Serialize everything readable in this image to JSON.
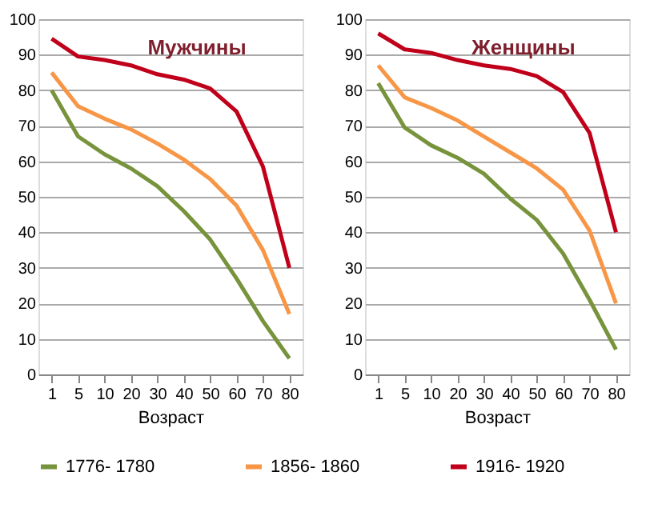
{
  "chart_data": [
    {
      "type": "line",
      "title": "Мужчины",
      "xlabel": "Возраст",
      "categories": [
        "1",
        "5",
        "10",
        "20",
        "30",
        "40",
        "50",
        "60",
        "70",
        "80"
      ],
      "ylim": [
        0,
        100
      ],
      "yticks": [
        0,
        10,
        20,
        30,
        40,
        50,
        60,
        70,
        80,
        90,
        100
      ],
      "grid": "y",
      "legend": "bottom",
      "series": [
        {
          "name": "1776- 1780",
          "color": "#77933c",
          "values": [
            80,
            67,
            62,
            58,
            53,
            46,
            38,
            27,
            15,
            4.5
          ]
        },
        {
          "name": "1856- 1860",
          "color": "#f79646",
          "values": [
            85,
            75.5,
            72,
            69,
            65,
            60.5,
            55,
            47.5,
            35,
            17
          ]
        },
        {
          "name": "1916- 1920",
          "color": "#c0001a",
          "values": [
            94.5,
            89.5,
            88.5,
            87,
            84.5,
            83,
            80.5,
            74,
            58.5,
            30
          ]
        }
      ]
    },
    {
      "type": "line",
      "title": "Женщины",
      "xlabel": "Возраст",
      "categories": [
        "1",
        "5",
        "10",
        "20",
        "30",
        "40",
        "50",
        "60",
        "70",
        "80"
      ],
      "ylim": [
        0,
        100
      ],
      "yticks": [
        0,
        10,
        20,
        30,
        40,
        50,
        60,
        70,
        80,
        90,
        100
      ],
      "grid": "y",
      "legend": "bottom",
      "series": [
        {
          "name": "1776- 1780",
          "color": "#77933c",
          "values": [
            82,
            69.5,
            64.5,
            61,
            56.5,
            49.5,
            43.5,
            34,
            21,
            7
          ]
        },
        {
          "name": "1856- 1860",
          "color": "#f79646",
          "values": [
            87,
            78,
            75,
            71.5,
            67,
            62.5,
            58,
            52,
            40.5,
            20
          ]
        },
        {
          "name": "1916- 1920",
          "color": "#c0001a",
          "values": [
            96,
            91.5,
            90.5,
            88.5,
            87,
            86,
            84,
            79.5,
            68,
            40
          ]
        }
      ]
    }
  ]
}
